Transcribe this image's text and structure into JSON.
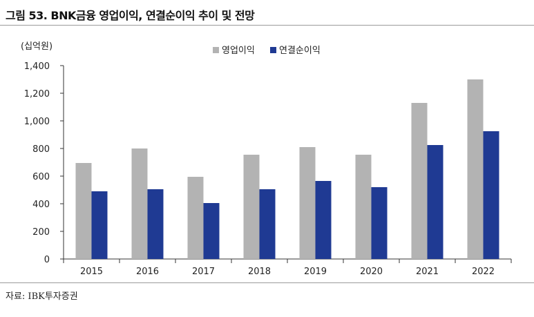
{
  "header": {
    "title": "그림 53. BNK금융 영업이익, 연결순이익 추이 및 전망"
  },
  "footer": {
    "source": "자료: IBK투자증권"
  },
  "chart_data": {
    "type": "bar",
    "unit_label": "(십억원)",
    "categories": [
      "2015",
      "2016",
      "2017",
      "2018",
      "2019",
      "2020",
      "2021",
      "2022"
    ],
    "series": [
      {
        "name": "영업이익",
        "color": "#b3b3b3",
        "values": [
          695,
          800,
          595,
          755,
          810,
          755,
          1130,
          1300
        ]
      },
      {
        "name": "연결순이익",
        "color": "#1f3a93",
        "values": [
          490,
          505,
          405,
          505,
          565,
          520,
          825,
          925
        ]
      }
    ],
    "ylim": [
      0,
      1400
    ],
    "yticks": [
      "0",
      "200",
      "400",
      "600",
      "800",
      "1,000",
      "1,200",
      "1,400"
    ],
    "legend_position": "top-center",
    "grid": false
  }
}
